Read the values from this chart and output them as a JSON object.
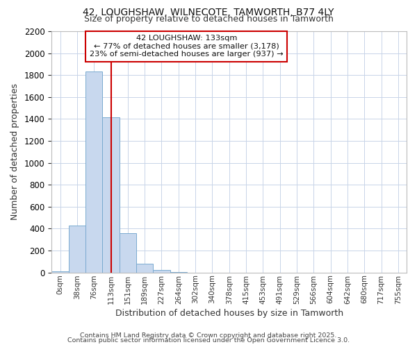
{
  "title1": "42, LOUGHSHAW, WILNECOTE, TAMWORTH, B77 4LY",
  "title2": "Size of property relative to detached houses in Tamworth",
  "xlabel": "Distribution of detached houses by size in Tamworth",
  "ylabel": "Number of detached properties",
  "bar_labels": [
    "0sqm",
    "38sqm",
    "76sqm",
    "113sqm",
    "151sqm",
    "189sqm",
    "227sqm",
    "264sqm",
    "302sqm",
    "340sqm",
    "378sqm",
    "415sqm",
    "453sqm",
    "491sqm",
    "529sqm",
    "566sqm",
    "604sqm",
    "642sqm",
    "680sqm",
    "717sqm",
    "755sqm"
  ],
  "bar_values": [
    10,
    430,
    1830,
    1415,
    360,
    80,
    20,
    5,
    0,
    0,
    0,
    0,
    0,
    0,
    0,
    0,
    0,
    0,
    0,
    0,
    0
  ],
  "bar_color": "#c8d8ee",
  "bar_edge_color": "#7aaad0",
  "red_line_x": 3.0,
  "annotation_title": "42 LOUGHSHAW: 133sqm",
  "annotation_line1": "← 77% of detached houses are smaller (3,178)",
  "annotation_line2": "23% of semi-detached houses are larger (937) →",
  "annotation_box_color": "#ffffff",
  "annotation_box_edge": "#cc0000",
  "ylim": [
    0,
    2200
  ],
  "yticks": [
    0,
    200,
    400,
    600,
    800,
    1000,
    1200,
    1400,
    1600,
    1800,
    2000,
    2200
  ],
  "grid_color": "#c8d4e8",
  "bg_color": "#ffffff",
  "plot_bg_color": "#ffffff",
  "footer1": "Contains HM Land Registry data © Crown copyright and database right 2025.",
  "footer2": "Contains public sector information licensed under the Open Government Licence 3.0."
}
